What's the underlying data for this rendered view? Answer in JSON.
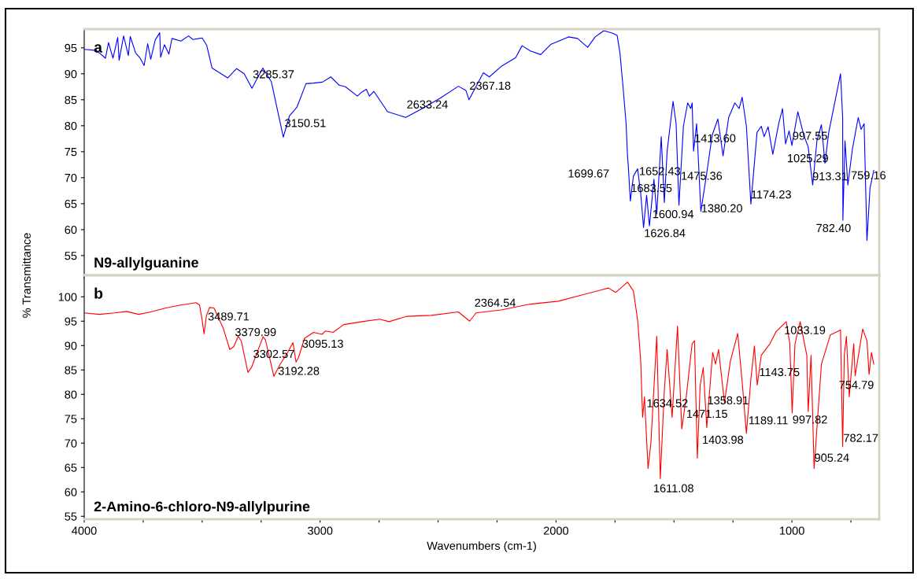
{
  "chart_data": [
    {
      "type": "line",
      "ylabel": "% Transmittance",
      "xlim": [
        4000,
        630
      ],
      "ylim": [
        51.2,
        98.6
      ],
      "xticks": [
        4000,
        {
          "value": 3750,
          "label": null
        },
        {
          "value": 3500,
          "label": null
        },
        {
          "value": 3250,
          "label": null
        },
        3000,
        {
          "value": 2750,
          "label": null
        },
        {
          "value": 2500,
          "label": null
        },
        {
          "value": 2250,
          "label": null
        },
        2000,
        {
          "value": 1750,
          "label": null
        },
        {
          "value": 1500,
          "label": null
        },
        {
          "value": 1250,
          "label": null
        },
        1000,
        {
          "value": 750,
          "label": null
        }
      ],
      "yticks": [
        55,
        60,
        65,
        70,
        75,
        80,
        85,
        90,
        95
      ],
      "tick_labels": "y",
      "grid": false,
      "series": [
        {
          "color": "#0000ff",
          "x": [
            4000,
            3948,
            3910,
            3897,
            3878,
            3858,
            3852,
            3833,
            3813,
            3805,
            3782,
            3763,
            3746,
            3731,
            3718,
            3699,
            3680,
            3676,
            3660,
            3641,
            3628,
            3590,
            3558,
            3539,
            3500,
            3481,
            3458,
            3392,
            3354,
            3322,
            3289,
            3243,
            3207,
            3156,
            3130,
            3098,
            3060,
            3028,
            2990,
            2955,
            2919,
            2893,
            2842,
            2823,
            2804,
            2791,
            2772,
            2714,
            2637,
            2567,
            2491,
            2414,
            2382,
            2369,
            2308,
            2283,
            2233,
            2171,
            2144,
            2109,
            2065,
            2021,
            1947,
            1909,
            1866,
            1834,
            1797,
            1760,
            1741,
            1729,
            1716,
            1703,
            1697,
            1694,
            1685,
            1672,
            1654,
            1641,
            1629,
            1616,
            1604,
            1585,
            1573,
            1554,
            1541,
            1529,
            1504,
            1491,
            1479,
            1460,
            1442,
            1429,
            1423,
            1417,
            1404,
            1386,
            1361,
            1338,
            1314,
            1292,
            1268,
            1242,
            1224,
            1211,
            1193,
            1174,
            1148,
            1130,
            1118,
            1101,
            1081,
            1056,
            1040,
            1027,
            1012,
            1000,
            975,
            950,
            931,
            912,
            894,
            875,
            860,
            844,
            794,
            785,
            784,
            775,
            763,
            744,
            719,
            707,
            694,
            682,
            669,
            653
          ],
          "values": [
            94.7,
            94.5,
            93.0,
            96.0,
            93.0,
            97.0,
            92.6,
            97.3,
            93.5,
            97.2,
            94.0,
            93.0,
            91.6,
            95.8,
            92.8,
            96.5,
            97.9,
            93.2,
            95.6,
            93.8,
            96.8,
            96.3,
            97.3,
            96.6,
            96.9,
            95.5,
            91.1,
            89.2,
            91.0,
            90.0,
            87.2,
            91.1,
            88.5,
            77.8,
            81.9,
            83.6,
            88.1,
            88.2,
            88.4,
            89.4,
            87.8,
            87.5,
            85.7,
            86.5,
            87.0,
            85.7,
            86.6,
            82.7,
            81.6,
            83.3,
            85.3,
            87.6,
            86.8,
            85.0,
            90.2,
            89.4,
            91.4,
            93.1,
            95.4,
            94.4,
            93.7,
            95.7,
            97.1,
            96.8,
            95.1,
            97.1,
            98.3,
            97.8,
            97.4,
            94.0,
            87.5,
            80.4,
            74.2,
            72.5,
            65.5,
            70.3,
            71.7,
            66.9,
            60.4,
            66.6,
            60.7,
            69.7,
            63.0,
            77.9,
            65.2,
            75.1,
            84.7,
            80.4,
            64.7,
            79.9,
            84.4,
            83.3,
            84.4,
            75.1,
            80.4,
            63.5,
            70.9,
            78.2,
            81.3,
            74.2,
            81.6,
            84.4,
            83.3,
            85.5,
            79.9,
            64.9,
            78.7,
            79.9,
            77.9,
            79.8,
            74.5,
            80.4,
            83.3,
            76.5,
            79.0,
            76.2,
            82.7,
            78.2,
            75.9,
            68.6,
            77.1,
            80.2,
            72.8,
            78.7,
            90.0,
            81.6,
            61.8,
            77.1,
            68.6,
            75.4,
            81.6,
            79.3,
            80.4,
            57.9,
            68.0,
            71.4
          ]
        }
      ],
      "annotations": [
        "a",
        {
          "text": "3285.37",
          "x": 3285.37,
          "y": 87.2
        },
        {
          "text": "3150.51",
          "x": 3150.51,
          "y": 77.8
        },
        {
          "text": "2633.24",
          "x": 2633.24,
          "y": 81.6
        },
        {
          "text": "2367.18",
          "x": 2367.18,
          "y": 85.0
        },
        {
          "text": "1699.67",
          "x": 1699.67,
          "y": 74.2
        },
        {
          "text": "1683.55",
          "x": 1683.55,
          "y": 65.5
        },
        {
          "text": "1652.43",
          "x": 1652.43,
          "y": 71.7
        },
        {
          "text": "1626.84",
          "x": 1626.84,
          "y": 60.4
        },
        {
          "text": "1600.94",
          "x": 1600.94,
          "y": 60.7
        },
        {
          "text": "1475.36",
          "x": 1475.36,
          "y": 64.7
        },
        {
          "text": "1413.60",
          "x": 1413.6,
          "y": 75.1
        },
        {
          "text": "1380.20",
          "x": 1380.2,
          "y": 63.5
        },
        {
          "text": "1174.23",
          "x": 1174.23,
          "y": 64.9
        },
        {
          "text": "1025.29",
          "x": 1025.29,
          "y": 76.5
        },
        {
          "text": "997.55",
          "x": 997.55,
          "y": 76.2
        },
        {
          "text": "913.31",
          "x": 913.31,
          "y": 68.6
        },
        {
          "text": "782.40",
          "x": 782.4,
          "y": 61.8
        },
        {
          "text": "759.16",
          "x": 759.16,
          "y": 68.6
        },
        "N9-allylguanine"
      ]
    },
    {
      "type": "line",
      "xlabel": "Wavenumbers (cm-1)",
      "xlim": [
        4000,
        630
      ],
      "ylim": [
        54.4,
        104.4
      ],
      "xticks": [
        4000,
        {
          "value": 3750,
          "label": null
        },
        {
          "value": 3500,
          "label": null
        },
        {
          "value": 3250,
          "label": null
        },
        3000,
        {
          "value": 2750,
          "label": null
        },
        {
          "value": 2500,
          "label": null
        },
        {
          "value": 2250,
          "label": null
        },
        2000,
        {
          "value": 1750,
          "label": null
        },
        {
          "value": 1500,
          "label": null
        },
        {
          "value": 1250,
          "label": null
        },
        1000,
        {
          "value": 750,
          "label": null
        }
      ],
      "yticks": [
        55,
        60,
        65,
        70,
        75,
        80,
        85,
        90,
        95,
        100
      ],
      "grid": false,
      "series": [
        {
          "color": "#ff0000",
          "x": [
            4000,
            3936,
            3872,
            3820,
            3769,
            3718,
            3654,
            3590,
            3526,
            3511,
            3501,
            3492,
            3482,
            3469,
            3450,
            3411,
            3383,
            3366,
            3347,
            3334,
            3306,
            3290,
            3242,
            3232,
            3196,
            3168,
            3136,
            3115,
            3102,
            3092,
            3066,
            3028,
            2992,
            2977,
            2945,
            2900,
            2823,
            2747,
            2708,
            2632,
            2529,
            2414,
            2366,
            2339,
            2233,
            2109,
            1990,
            1897,
            1778,
            1747,
            1697,
            1672,
            1654,
            1641,
            1633,
            1625,
            1610,
            1598,
            1573,
            1558,
            1541,
            1529,
            1508,
            1485,
            1467,
            1448,
            1423,
            1413,
            1401,
            1389,
            1376,
            1361,
            1336,
            1324,
            1311,
            1286,
            1261,
            1230,
            1211,
            1193,
            1174,
            1159,
            1147,
            1130,
            1093,
            1068,
            1037,
            1024,
            1009,
            999,
            987,
            965,
            937,
            931,
            919,
            906,
            875,
            837,
            794,
            785,
            778,
            769,
            757,
            738,
            732,
            700,
            682,
            673,
            663,
            653
          ],
          "values": [
            96.7,
            96.4,
            96.7,
            97.0,
            96.4,
            96.9,
            97.7,
            98.3,
            98.8,
            98.3,
            95.5,
            92.4,
            96.1,
            97.8,
            97.7,
            93.6,
            89.2,
            89.8,
            91.9,
            90.9,
            84.5,
            85.6,
            91.8,
            91.2,
            83.7,
            86.3,
            88.7,
            90.6,
            86.6,
            87.5,
            91.5,
            92.7,
            92.3,
            93.0,
            92.7,
            94.3,
            94.9,
            95.4,
            94.9,
            96.0,
            96.2,
            96.9,
            95.0,
            96.7,
            97.3,
            98.5,
            99.1,
            100.3,
            101.8,
            100.9,
            103.0,
            101.2,
            95.2,
            86.8,
            75.3,
            79.5,
            64.8,
            69.9,
            91.9,
            62.7,
            80.7,
            89.2,
            75.3,
            94.0,
            72.9,
            79.5,
            90.4,
            91.0,
            66.9,
            81.9,
            85.5,
            73.2,
            88.6,
            86.2,
            89.2,
            78.3,
            86.8,
            92.5,
            82.6,
            72.0,
            83.1,
            89.9,
            81.9,
            88.0,
            90.4,
            92.8,
            94.3,
            94.9,
            90.4,
            76.2,
            90.4,
            94.9,
            88.0,
            76.5,
            88.0,
            64.8,
            86.2,
            92.2,
            93.2,
            69.3,
            88.0,
            91.9,
            79.5,
            90.4,
            83.8,
            93.4,
            91.0,
            84.1,
            88.6,
            86.2
          ]
        }
      ],
      "annotations": [
        "b",
        {
          "text": "3489.71",
          "x": 3489.71,
          "y": 92.4
        },
        {
          "text": "3379.99",
          "x": 3379.99,
          "y": 89.2
        },
        {
          "text": "3302.57",
          "x": 3302.57,
          "y": 84.5
        },
        {
          "text": "3192.28",
          "x": 3192.28,
          "y": 83.7
        },
        {
          "text": "3095.13",
          "x": 3095.13,
          "y": 86.6
        },
        {
          "text": "2364.54",
          "x": 2364.54,
          "y": 95.0
        },
        {
          "text": "1634.52",
          "x": 1634.52,
          "y": 75.3
        },
        {
          "text": "1611.08",
          "x": 1611.08,
          "y": 64.8
        },
        {
          "text": "1471.15",
          "x": 1471.15,
          "y": 72.9
        },
        {
          "text": "1403.98",
          "x": 1403.98,
          "y": 66.9
        },
        {
          "text": "1358.91",
          "x": 1358.91,
          "y": 73.2
        },
        {
          "text": "1189.11",
          "x": 1189.11,
          "y": 72.0
        },
        {
          "text": "1143.75",
          "x": 1143.75,
          "y": 81.9
        },
        {
          "text": "1033.19",
          "x": 1033.19,
          "y": 94.3
        },
        {
          "text": "997.82",
          "x": 997.82,
          "y": 76.2
        },
        {
          "text": "905.24",
          "x": 905.24,
          "y": 64.8
        },
        {
          "text": "782.17",
          "x": 782.17,
          "y": 69.3
        },
        {
          "text": "754.79",
          "x": 754.79,
          "y": 79.5
        },
        "2-Amino-6-chloro-N9-allylpurine"
      ]
    }
  ]
}
